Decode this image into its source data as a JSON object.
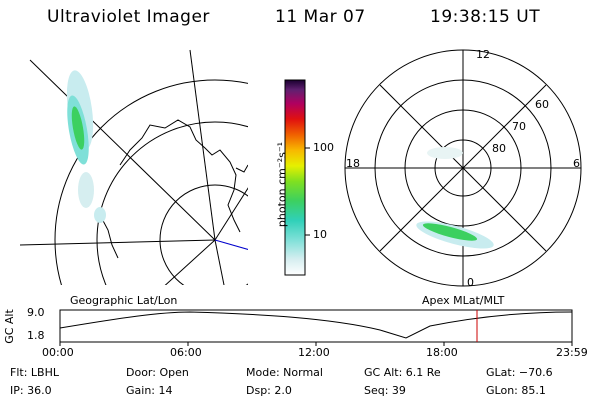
{
  "header": {
    "instrument": "Ultraviolet Imager",
    "date": "11 Mar 07",
    "time": "19:38:15 UT"
  },
  "colorbar": {
    "unit_label": "photon cm⁻²s⁻¹",
    "ticks": [
      "100",
      "10"
    ]
  },
  "panels": {
    "geo_label": "Geographic Lat/Lon",
    "mag_label": "Apex MLat/MLT"
  },
  "polar": {
    "mlt_labels": [
      "12",
      "18",
      "6",
      "0"
    ],
    "lat_labels": [
      "60",
      "70",
      "80"
    ]
  },
  "altitude": {
    "axis_label": "GC Alt",
    "y_ticks": [
      "9.0",
      "1.8"
    ],
    "x_ticks": [
      "00:00",
      "06:00",
      "12:00",
      "18:00",
      "23:59"
    ]
  },
  "info": {
    "flt": "Flt: LBHL",
    "ip": "IP: 36.0",
    "door": "Door: Open",
    "gain": "Gain: 14",
    "mode": "Mode: Normal",
    "dsp": "Dsp:    2.0",
    "gcalt": "GC Alt: 6.1 Re",
    "seq": "Seq: 39",
    "glat": "GLat: −70.6",
    "glon": "GLon:  85.1"
  },
  "colors": {
    "marker": "#cc0000",
    "meridian": "#0000cc"
  }
}
